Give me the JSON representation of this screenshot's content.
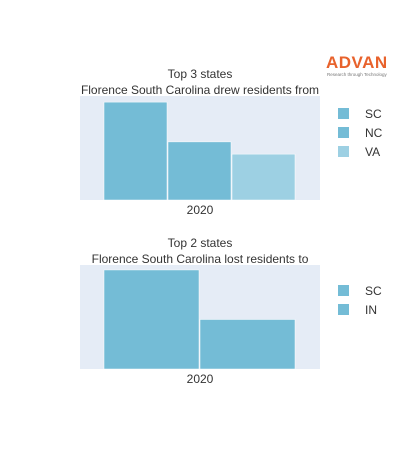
{
  "logo": {
    "word": "ADVAN",
    "tagline": "Research through Technology"
  },
  "chart_data": [
    {
      "type": "bar",
      "title": "Top 3 states",
      "subtitle": "Florence South Carolina drew residents from",
      "categories": [
        "2020"
      ],
      "series": [
        {
          "name": "SC",
          "values": [
            32
          ],
          "color": "#74bcd6"
        },
        {
          "name": "NC",
          "values": [
            19
          ],
          "color": "#74bcd6"
        },
        {
          "name": "VA",
          "values": [
            15
          ],
          "color": "#9dd0e3"
        }
      ],
      "ylim": [
        0,
        34
      ],
      "grid": false,
      "legend": "right"
    },
    {
      "type": "bar",
      "title": "Top 2 states",
      "subtitle": "Florence South Carolina lost residents to",
      "categories": [
        "2020"
      ],
      "series": [
        {
          "name": "SC",
          "values": [
            10
          ],
          "color": "#74bcd6"
        },
        {
          "name": "IN",
          "values": [
            5
          ],
          "color": "#74bcd6"
        }
      ],
      "ylim": [
        0,
        10.5
      ],
      "grid": false,
      "legend": "right"
    }
  ]
}
